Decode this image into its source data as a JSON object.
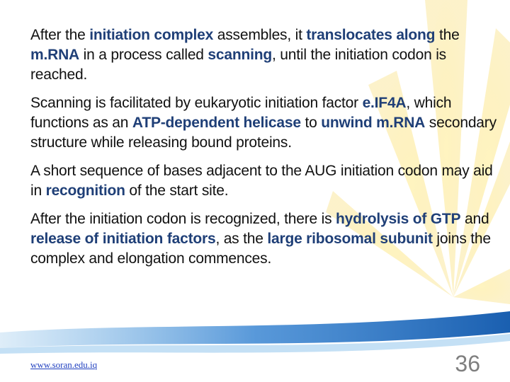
{
  "highlight_color": "#1f3f77",
  "paragraphs": [
    [
      {
        "text": "After the "
      },
      {
        "text": "initiation complex",
        "key": true
      },
      {
        "text": " assembles, it "
      },
      {
        "text": "translocates along",
        "key": true
      },
      {
        "text": " the "
      },
      {
        "text": "m.RNA",
        "key": true
      },
      {
        "text": " in a process called "
      },
      {
        "text": "scanning",
        "key": true
      },
      {
        "text": ", until the initiation codon is reached."
      }
    ],
    [
      {
        "text": "Scanning is facilitated by eukaryotic initiation factor "
      },
      {
        "text": "e.IF4A",
        "key": true
      },
      {
        "text": ", which functions as an "
      },
      {
        "text": "ATP-dependent helicase",
        "key": true
      },
      {
        "text": " to "
      },
      {
        "text": "unwind m.RNA",
        "key": true
      },
      {
        "text": " secondary structure while releasing bound proteins."
      }
    ],
    [
      {
        "text": "A short sequence of bases adjacent to the AUG initiation codon may aid in "
      },
      {
        "text": "recognition",
        "key": true
      },
      {
        "text": " of the start site."
      }
    ],
    [
      {
        "text": "After the initiation codon is recognized, there is "
      },
      {
        "text": "hydrolysis of GTP",
        "key": true
      },
      {
        "text": " and "
      },
      {
        "text": "release of initiation factors",
        "key": true
      },
      {
        "text": ", as the "
      },
      {
        "text": "large ribosomal subunit",
        "key": true
      },
      {
        "text": " joins the complex and elongation commences."
      }
    ]
  ],
  "footer": {
    "url": "www.soran.edu.iq",
    "page_number": 36
  }
}
